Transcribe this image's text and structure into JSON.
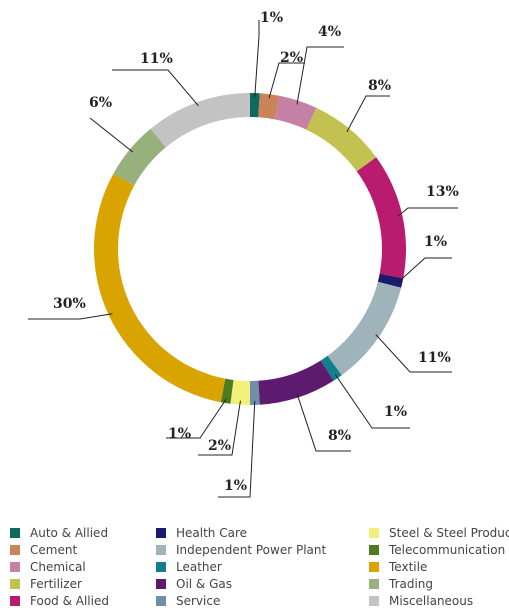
{
  "chart_data": {
    "type": "pie",
    "donut": true,
    "categories": [
      "Auto & Allied",
      "Cement",
      "Chemical",
      "Fertilizer",
      "Food & Allied",
      "Health Care",
      "Independent Power Plant",
      "Leather",
      "Oil & Gas",
      "Service",
      "Steel & Steel Products",
      "Telecommunication",
      "Textile",
      "Trading",
      "Miscellaneous"
    ],
    "values": [
      1,
      2,
      4,
      8,
      13,
      1,
      11,
      1,
      8,
      1,
      2,
      1,
      30,
      6,
      11
    ],
    "labels": [
      "1%",
      "2%",
      "4%",
      "8%",
      "13%",
      "1%",
      "11%",
      "1%",
      "8%",
      "1%",
      "2%",
      "1%",
      "30%",
      "6%",
      "11%"
    ],
    "colors": [
      "#0e6a5c",
      "#c98457",
      "#c580a6",
      "#c3c150",
      "#b91b6f",
      "#1a1a6e",
      "#9fb3bb",
      "#127f91",
      "#5e1a6e",
      "#6f8fa8",
      "#f3f07a",
      "#4f7a22",
      "#d9a400",
      "#98b07b",
      "#c3c3c3"
    ],
    "legend_placement": "bottom"
  }
}
